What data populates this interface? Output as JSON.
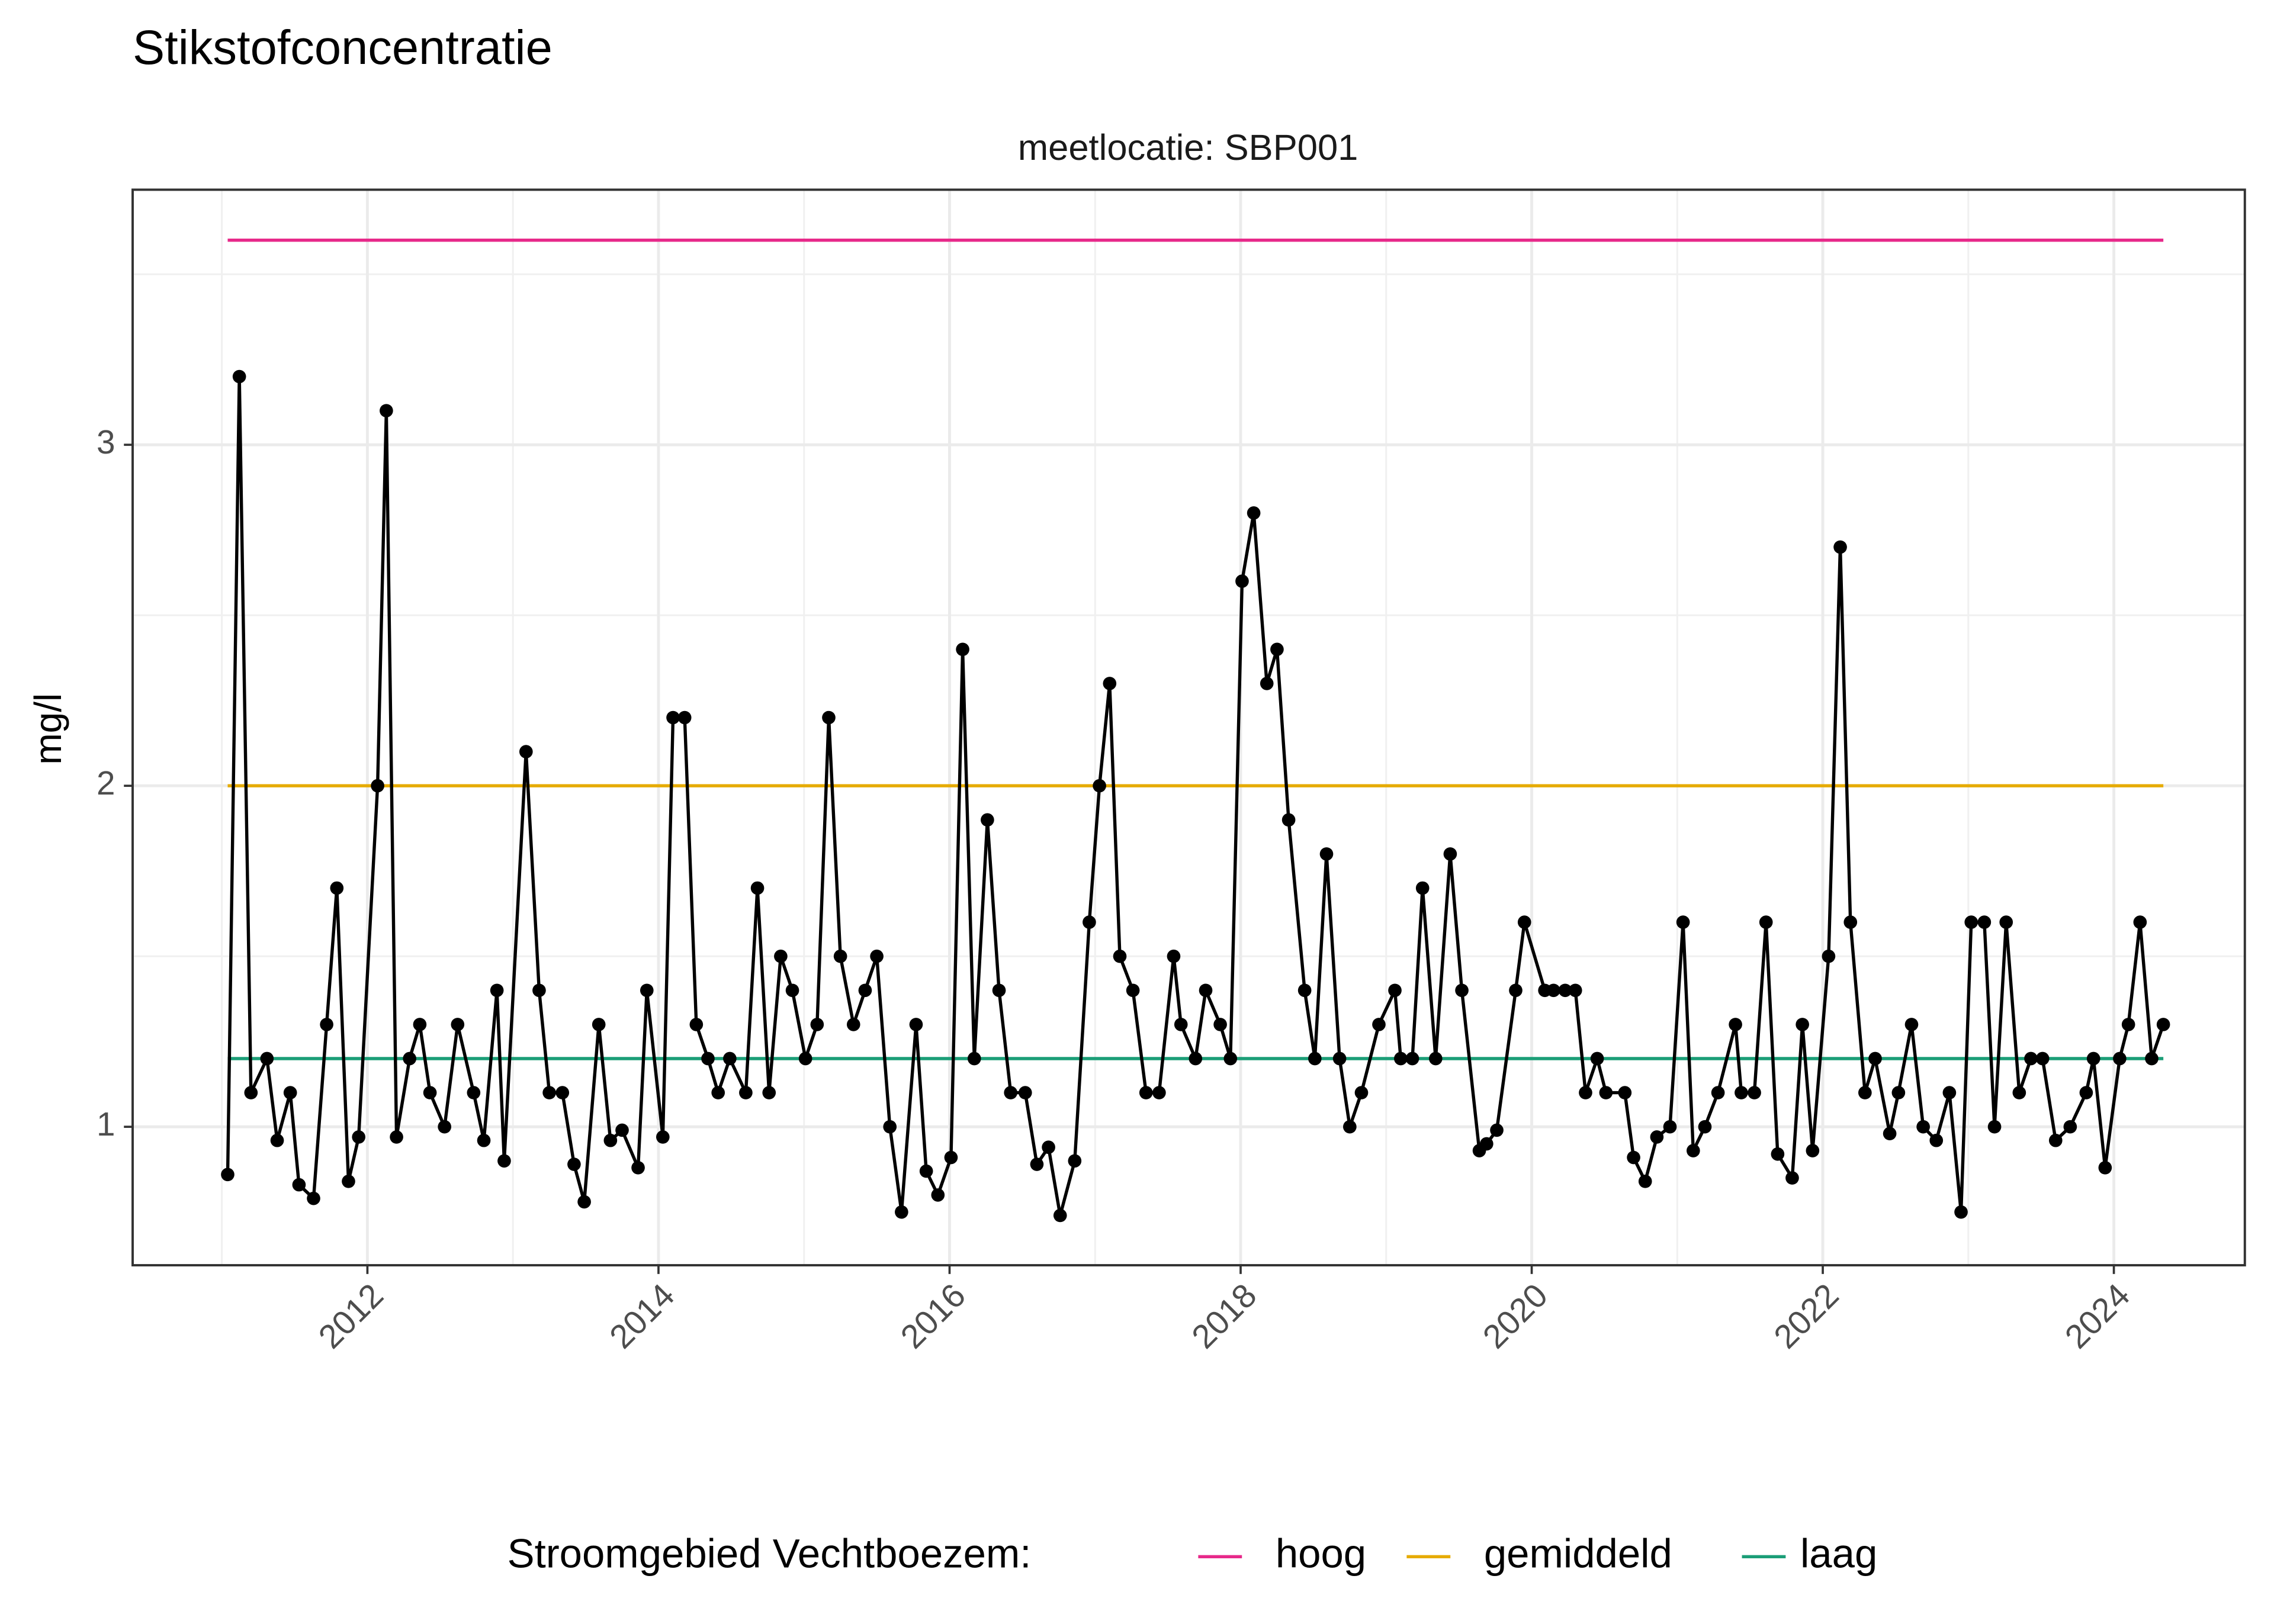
{
  "chart_data": {
    "type": "line",
    "title": "Stikstofconcentratie",
    "subtitle": "meetlocatie: SBP001",
    "y_label": "mg/l",
    "legend_title": "Stroomgebied Vechtboezem:",
    "legend_position": "bottom",
    "grid": true,
    "xlim": [
      2010.387,
      2024.9
    ],
    "ylim": [
      0.594,
      3.748
    ],
    "xticks": [
      2012,
      2014,
      2016,
      2018,
      2020,
      2022,
      2024
    ],
    "yticks": [
      1,
      2,
      3
    ],
    "measurements": {
      "color": "#000000",
      "x": [
        2011.04,
        2011.12,
        2011.2,
        2011.31,
        2011.38,
        2011.47,
        2011.53,
        2011.63,
        2011.72,
        2011.79,
        2011.87,
        2011.94,
        2012.07,
        2012.13,
        2012.2,
        2012.29,
        2012.36,
        2012.43,
        2012.53,
        2012.62,
        2012.73,
        2012.8,
        2012.89,
        2012.94,
        2013.09,
        2013.18,
        2013.25,
        2013.34,
        2013.42,
        2013.49,
        2013.59,
        2013.67,
        2013.75,
        2013.86,
        2013.92,
        2014.03,
        2014.1,
        2014.18,
        2014.26,
        2014.34,
        2014.41,
        2014.49,
        2014.6,
        2014.68,
        2014.76,
        2014.84,
        2014.92,
        2015.01,
        2015.09,
        2015.17,
        2015.25,
        2015.34,
        2015.42,
        2015.5,
        2015.59,
        2015.67,
        2015.77,
        2015.84,
        2015.92,
        2016.01,
        2016.09,
        2016.17,
        2016.26,
        2016.34,
        2016.42,
        2016.52,
        2016.6,
        2016.68,
        2016.76,
        2016.86,
        2016.96,
        2017.03,
        2017.1,
        2017.17,
        2017.26,
        2017.35,
        2017.44,
        2017.54,
        2017.59,
        2017.69,
        2017.76,
        2017.86,
        2017.93,
        2018.01,
        2018.09,
        2018.18,
        2018.25,
        2018.33,
        2018.44,
        2018.51,
        2018.59,
        2018.68,
        2018.75,
        2018.83,
        2018.95,
        2019.06,
        2019.1,
        2019.18,
        2019.25,
        2019.34,
        2019.44,
        2019.52,
        2019.64,
        2019.69,
        2019.76,
        2019.89,
        2019.95,
        2020.09,
        2020.15,
        2020.23,
        2020.3,
        2020.37,
        2020.45,
        2020.51,
        2020.64,
        2020.7,
        2020.78,
        2020.86,
        2020.95,
        2021.04,
        2021.11,
        2021.19,
        2021.28,
        2021.4,
        2021.44,
        2021.53,
        2021.61,
        2021.69,
        2021.79,
        2021.86,
        2021.93,
        2022.04,
        2022.12,
        2022.19,
        2022.29,
        2022.36,
        2022.46,
        2022.52,
        2022.61,
        2022.69,
        2022.78,
        2022.87,
        2022.95,
        2023.02,
        2023.11,
        2023.18,
        2023.26,
        2023.35,
        2023.43,
        2023.51,
        2023.6,
        2023.7,
        2023.81,
        2023.86,
        2023.94,
        2024.04,
        2024.1,
        2024.18,
        2024.26,
        2024.34
      ],
      "values": [
        0.86,
        3.2,
        1.1,
        1.2,
        0.96,
        1.1,
        0.83,
        0.79,
        1.3,
        1.7,
        0.84,
        0.97,
        2.0,
        3.1,
        0.97,
        1.2,
        1.3,
        1.1,
        1.0,
        1.3,
        1.1,
        0.96,
        1.4,
        0.9,
        2.1,
        1.4,
        1.1,
        1.1,
        0.89,
        0.78,
        1.3,
        0.96,
        0.99,
        0.88,
        1.4,
        0.97,
        2.2,
        2.2,
        1.3,
        1.2,
        1.1,
        1.2,
        1.1,
        1.7,
        1.1,
        1.5,
        1.4,
        1.2,
        1.3,
        2.2,
        1.5,
        1.3,
        1.4,
        1.5,
        1.0,
        0.75,
        1.3,
        0.87,
        0.8,
        0.91,
        2.4,
        1.2,
        1.9,
        1.4,
        1.1,
        1.1,
        0.89,
        0.94,
        0.74,
        0.9,
        1.6,
        2.0,
        2.3,
        1.5,
        1.4,
        1.1,
        1.1,
        1.5,
        1.3,
        1.2,
        1.4,
        1.3,
        1.2,
        2.6,
        2.8,
        2.3,
        2.4,
        1.9,
        1.4,
        1.2,
        1.8,
        1.2,
        1.0,
        1.1,
        1.3,
        1.4,
        1.2,
        1.2,
        1.7,
        1.2,
        1.8,
        1.4,
        0.93,
        0.95,
        0.99,
        1.4,
        1.6,
        1.4,
        1.4,
        1.4,
        1.4,
        1.1,
        1.2,
        1.1,
        1.1,
        0.91,
        0.84,
        0.97,
        1.0,
        1.6,
        0.93,
        1.0,
        1.1,
        1.3,
        1.1,
        1.1,
        1.6,
        0.92,
        0.85,
        1.3,
        0.93,
        1.5,
        2.7,
        1.6,
        1.1,
        1.2,
        0.98,
        1.1,
        1.3,
        1.0,
        0.96,
        1.1,
        0.75,
        1.6,
        1.6,
        1.0,
        1.6,
        1.1,
        1.2,
        1.2,
        0.96,
        1.0,
        1.1,
        1.2,
        0.88,
        1.2,
        1.3,
        1.6,
        1.2,
        1.3
      ]
    },
    "series": [
      {
        "name": "hoog",
        "color": "#e7298a",
        "x": [
          2011.04,
          2024.34
        ],
        "values": [
          3.6,
          3.6
        ]
      },
      {
        "name": "gemiddeld",
        "color": "#e6ab02",
        "x": [
          2011.04,
          2024.34
        ],
        "values": [
          2.0,
          2.0
        ]
      },
      {
        "name": "laag",
        "color": "#1b9e77",
        "x": [
          2011.04,
          2024.34
        ],
        "values": [
          1.2,
          1.2
        ]
      }
    ]
  }
}
